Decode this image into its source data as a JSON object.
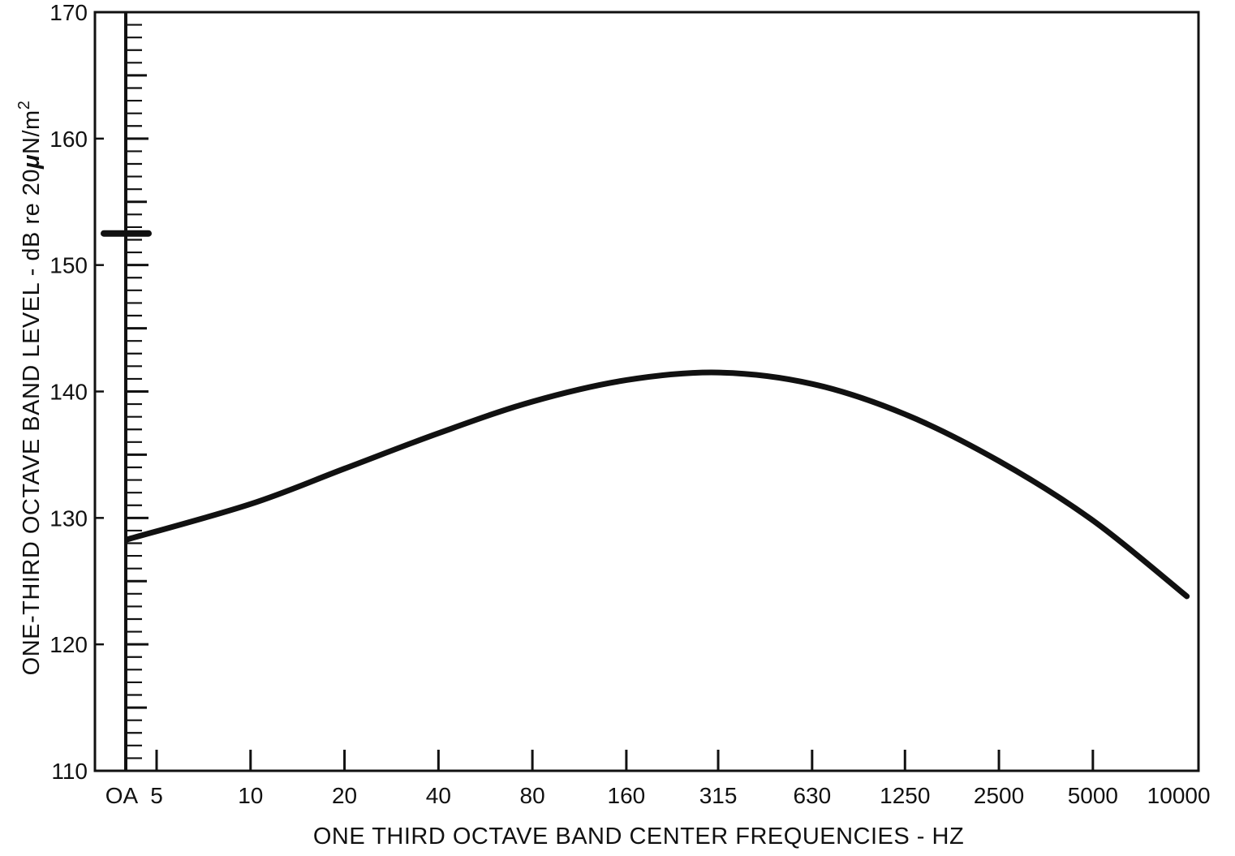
{
  "chart_data": {
    "type": "line",
    "title": "",
    "xlabel": "ONE THIRD OCTAVE BAND CENTER FREQUENCIES - HZ",
    "ylabel_parts": {
      "main": "ONE-THIRD OCTAVE BAND LEVEL - dB re 20",
      "mu": "μ",
      "unit": "N/m",
      "exp": "2"
    },
    "ylim": [
      110,
      170
    ],
    "y_major_ticks": [
      110,
      120,
      130,
      140,
      150,
      160,
      170
    ],
    "y_minor_step": 1,
    "x_scale": "log (one-third octave bands)",
    "x_tick_labels": [
      "OA",
      "5",
      "10",
      "20",
      "40",
      "80",
      "160",
      "315",
      "630",
      "1250",
      "2500",
      "5000",
      "10000"
    ],
    "overall_level": {
      "label": "OA",
      "value": 152.5
    },
    "series": [
      {
        "x": [
          5,
          10,
          20,
          40,
          80,
          160,
          315,
          630,
          1250,
          2500,
          5000,
          10000
        ],
        "values": [
          128.3,
          131.1,
          133.9,
          136.7,
          139.2,
          140.9,
          141.5,
          140.6,
          138.2,
          134.5,
          129.8,
          123.8
        ]
      }
    ],
    "grid": false,
    "colors": {
      "line": "#111111",
      "background": "#ffffff"
    }
  }
}
